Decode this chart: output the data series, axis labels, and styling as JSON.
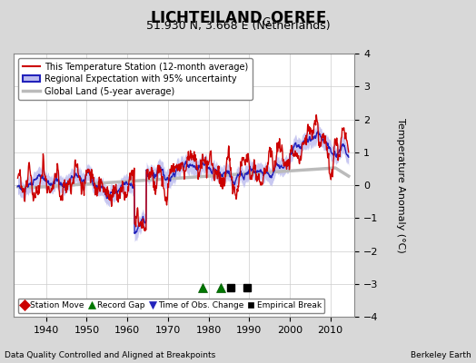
{
  "title_line1": "LICHTEILAND",
  "title_subscript": "G",
  "title_line1_suffix": "OEREE",
  "title_line2": "51.930 N, 3.668 E (Netherlands)",
  "ylabel": "Temperature Anomaly (°C)",
  "xlabel_left": "Data Quality Controlled and Aligned at Breakpoints",
  "xlabel_right": "Berkeley Earth",
  "ylim": [
    -4,
    4
  ],
  "xlim": [
    1932,
    2016
  ],
  "xticks": [
    1940,
    1950,
    1960,
    1970,
    1980,
    1990,
    2000,
    2010
  ],
  "yticks": [
    -4,
    -3,
    -2,
    -1,
    0,
    1,
    2,
    3,
    4
  ],
  "fig_bg_color": "#d8d8d8",
  "plot_bg_color": "#ffffff",
  "station_color": "#cc0000",
  "regional_color": "#2222bb",
  "regional_fill_color": "#bbbbee",
  "global_color": "#bbbbbb",
  "marker_events": {
    "record_gaps": [
      1978.5,
      1983.0
    ],
    "time_obs_changes": [],
    "empirical_breaks": [
      1985.5,
      1989.5
    ],
    "station_moves": []
  },
  "marker_y": -3.1,
  "seed": 42,
  "start_year": 1933.0,
  "end_year": 2014.5,
  "n_months": 978
}
